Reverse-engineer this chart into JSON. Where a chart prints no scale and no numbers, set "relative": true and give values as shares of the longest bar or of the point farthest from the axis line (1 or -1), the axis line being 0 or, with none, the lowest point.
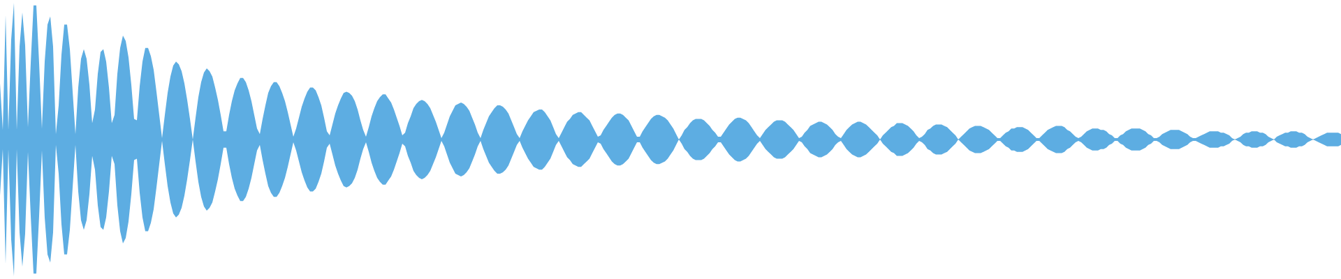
{
  "chart_data": {
    "type": "area",
    "relative": true,
    "categories": [
      null,
      null,
      null,
      null,
      null,
      null,
      null,
      null,
      null,
      null,
      null,
      null,
      null,
      null,
      null,
      null,
      null,
      null,
      null,
      null,
      null,
      null,
      null,
      null,
      null,
      null,
      null,
      null,
      null,
      null,
      null,
      null,
      null,
      null,
      null,
      null,
      null,
      null,
      null,
      null,
      null,
      null,
      null,
      null,
      null,
      null,
      null,
      null,
      null,
      null,
      null,
      null,
      null,
      null,
      null,
      null,
      null,
      null,
      null,
      null,
      null,
      null,
      null,
      null,
      null,
      null,
      null,
      null,
      null,
      null,
      null,
      null,
      null,
      null,
      null,
      null,
      null,
      null,
      null,
      null,
      null,
      null,
      null,
      null,
      null,
      null,
      null,
      null,
      null,
      null,
      null,
      null,
      null,
      null,
      null,
      null,
      null,
      null,
      null,
      null,
      null,
      null,
      null,
      null,
      null,
      null,
      null,
      null,
      null,
      null,
      null,
      null,
      null,
      null,
      null,
      null,
      null,
      null,
      null,
      null,
      null,
      null,
      null,
      null,
      null,
      null,
      null,
      null,
      null,
      null,
      null,
      null,
      null,
      null,
      null,
      null,
      null,
      null,
      null,
      null,
      null,
      null,
      null,
      null,
      null,
      null,
      null,
      null,
      null,
      null,
      null,
      null,
      null,
      null,
      null,
      null,
      null,
      null,
      null,
      null,
      null,
      null,
      null,
      null,
      null,
      null,
      null,
      null,
      null,
      null,
      null,
      null,
      null,
      null,
      null,
      null,
      null,
      null,
      null,
      null,
      null,
      null,
      null,
      null,
      null,
      null,
      null,
      null,
      null,
      null,
      null,
      null,
      null,
      null,
      null,
      null,
      null,
      null,
      null,
      null,
      null,
      null,
      null,
      null,
      null,
      null,
      null,
      null,
      null,
      null,
      null,
      null,
      null,
      null,
      null,
      null,
      null,
      null,
      null,
      null,
      null,
      null,
      null,
      null,
      null,
      null,
      null,
      null,
      null,
      null,
      null,
      null,
      null,
      null,
      null,
      null,
      null,
      null,
      null,
      null,
      null,
      null,
      null,
      null,
      null,
      null,
      null,
      null,
      null,
      null,
      null,
      null,
      null,
      null,
      null,
      null,
      null,
      null,
      null,
      null,
      null,
      null,
      null,
      null,
      null,
      null,
      null,
      null,
      null,
      null,
      null,
      null,
      null,
      null,
      null,
      null,
      null,
      null,
      null,
      null,
      null,
      null,
      null,
      null,
      null,
      null,
      null,
      null,
      null,
      null,
      null,
      null,
      null,
      null,
      null,
      null,
      null,
      null,
      null,
      null,
      null,
      null,
      null,
      null,
      null,
      null,
      null,
      null,
      null,
      null,
      null,
      null,
      null,
      null,
      null,
      null,
      null,
      null,
      null,
      null,
      null,
      null,
      null,
      null,
      null,
      null,
      null,
      null,
      null,
      null,
      null,
      null,
      null,
      null,
      null,
      null,
      null,
      null,
      null,
      null,
      null,
      null,
      null,
      null,
      null,
      null,
      null,
      null,
      null,
      null,
      null,
      null,
      null,
      null,
      null,
      null,
      null,
      null,
      null,
      null,
      null,
      null,
      null,
      null,
      null,
      null,
      null,
      null,
      null,
      null,
      null,
      null,
      null,
      null,
      null,
      null,
      null,
      null,
      null,
      null,
      null,
      null,
      null,
      null,
      null,
      null,
      null,
      null,
      null,
      null,
      null,
      null,
      null,
      null,
      null,
      null,
      null,
      null,
      null,
      null,
      null,
      null,
      null,
      null,
      null,
      null,
      null,
      null,
      null,
      null,
      null,
      null,
      null,
      null,
      null,
      null,
      null,
      null,
      null,
      null,
      null,
      null,
      null,
      null,
      null,
      null,
      null,
      null,
      null,
      null,
      null,
      null,
      null,
      null,
      null,
      null,
      null,
      null,
      null,
      null,
      null,
      null,
      null,
      null,
      null,
      null,
      null,
      null,
      null,
      null,
      null,
      null,
      null,
      null,
      null,
      null,
      null,
      null,
      null,
      null,
      null,
      null,
      null,
      null,
      null,
      null,
      null,
      null,
      null,
      null,
      null,
      null,
      null,
      null,
      null,
      null,
      null,
      null,
      null,
      null,
      null
    ],
    "series": [
      {
        "color": "#5dade2",
        "values": [
          0.41,
          0.07,
          0.91,
          0.07,
          0.73,
          1,
          0.07,
          0.68,
          0.93,
          0.69,
          0.09,
          0.56,
          0.98,
          0.98,
          0.56,
          0.08,
          0.57,
          0.84,
          0.9,
          0.68,
          0.04,
          0.25,
          0.62,
          0.84,
          0.84,
          0.66,
          0.35,
          0.04,
          0.38,
          0.59,
          0.66,
          0.59,
          0.4,
          0.12,
          0.22,
          0.48,
          0.64,
          0.66,
          0.57,
          0.38,
          0.12,
          0.18,
          0.48,
          0.67,
          0.76,
          0.72,
          0.6,
          0.4,
          0.15,
          0.14,
          0.39,
          0.57,
          0.67,
          0.67,
          0.61,
          0.51,
          0.35,
          0.18,
          0.01,
          0.18,
          0.34,
          0.46,
          0.54,
          0.57,
          0.55,
          0.5,
          0.41,
          0.29,
          0.15,
          0,
          0.16,
          0.31,
          0.42,
          0.49,
          0.52,
          0.5,
          0.46,
          0.38,
          0.29,
          0.18,
          0.06,
          0.06,
          0.18,
          0.28,
          0.36,
          0.41,
          0.45,
          0.45,
          0.42,
          0.36,
          0.28,
          0.18,
          0.08,
          0.04,
          0.15,
          0.25,
          0.34,
          0.39,
          0.42,
          0.42,
          0.39,
          0.34,
          0.28,
          0.2,
          0.11,
          0.02,
          0.08,
          0.16,
          0.24,
          0.3,
          0.35,
          0.38,
          0.38,
          0.36,
          0.31,
          0.25,
          0.16,
          0.06,
          0.03,
          0.11,
          0.19,
          0.25,
          0.3,
          0.34,
          0.35,
          0.34,
          0.32,
          0.28,
          0.22,
          0.14,
          0.07,
          0.02,
          0.09,
          0.17,
          0.23,
          0.28,
          0.31,
          0.33,
          0.33,
          0.3,
          0.27,
          0.22,
          0.16,
          0.1,
          0.03,
          0.05,
          0.12,
          0.17,
          0.23,
          0.26,
          0.28,
          0.29,
          0.28,
          0.26,
          0.23,
          0.18,
          0.13,
          0.07,
          0.01,
          0.05,
          0.11,
          0.17,
          0.21,
          0.25,
          0.26,
          0.27,
          0.26,
          0.24,
          0.21,
          0.16,
          0.11,
          0.05,
          0.01,
          0.07,
          0.12,
          0.17,
          0.2,
          0.23,
          0.25,
          0.25,
          0.24,
          0.22,
          0.19,
          0.14,
          0.09,
          0.04,
          0.01,
          0.06,
          0.1,
          0.14,
          0.17,
          0.2,
          0.21,
          0.22,
          0.22,
          0.2,
          0.17,
          0.14,
          0.09,
          0.04,
          0.01,
          0.05,
          0.09,
          0.13,
          0.15,
          0.18,
          0.19,
          0.2,
          0.2,
          0.18,
          0.16,
          0.14,
          0.1,
          0.06,
          0.02,
          0.03,
          0.07,
          0.1,
          0.13,
          0.16,
          0.18,
          0.19,
          0.19,
          0.18,
          0.16,
          0.14,
          0.1,
          0.06,
          0.02,
          0.02,
          0.06,
          0.09,
          0.12,
          0.15,
          0.17,
          0.18,
          0.18,
          0.17,
          0.16,
          0.14,
          0.11,
          0.08,
          0.04,
          0,
          0.03,
          0.07,
          0.09,
          0.12,
          0.14,
          0.15,
          0.15,
          0.15,
          0.14,
          0.12,
          0.1,
          0.07,
          0.05,
          0.02,
          0.02,
          0.05,
          0.08,
          0.11,
          0.13,
          0.15,
          0.16,
          0.16,
          0.15,
          0.14,
          0.12,
          0.09,
          0.06,
          0.03,
          0.01,
          0.04,
          0.07,
          0.09,
          0.11,
          0.13,
          0.14,
          0.14,
          0.14,
          0.13,
          0.11,
          0.09,
          0.07,
          0.04,
          0.01,
          0.02,
          0.05,
          0.07,
          0.1,
          0.11,
          0.12,
          0.13,
          0.13,
          0.12,
          0.11,
          0.09,
          0.07,
          0.04,
          0.02,
          0.01,
          0.04,
          0.07,
          0.09,
          0.11,
          0.12,
          0.13,
          0.13,
          0.12,
          0.11,
          0.09,
          0.07,
          0.05,
          0.03,
          0,
          0.03,
          0.05,
          0.07,
          0.09,
          0.1,
          0.12,
          0.12,
          0.12,
          0.11,
          0.1,
          0.08,
          0.06,
          0.03,
          0.01,
          0.02,
          0.04,
          0.07,
          0.08,
          0.1,
          0.11,
          0.11,
          0.11,
          0.1,
          0.09,
          0.07,
          0.05,
          0.03,
          0,
          0.02,
          0.04,
          0.06,
          0.08,
          0.09,
          0.1,
          0.1,
          0.1,
          0.09,
          0.08,
          0.07,
          0.05,
          0.03,
          0.01,
          0.01,
          0.03,
          0.05,
          0.06,
          0.08,
          0.08,
          0.09,
          0.09,
          0.09,
          0.08,
          0.07,
          0.05,
          0.03,
          0.01,
          0.01,
          0.03,
          0.05,
          0.07,
          0.08,
          0.09,
          0.1,
          0.1,
          0.1,
          0.09,
          0.07,
          0.06,
          0.04,
          0.02,
          0.01,
          0.02,
          0.04,
          0.06,
          0.07,
          0.08,
          0.08,
          0.08,
          0.07,
          0.07,
          0.06,
          0.04,
          0.03,
          0.01,
          0.01,
          0.03,
          0.04,
          0.06,
          0.07,
          0.08,
          0.08,
          0.08,
          0.08,
          0.07,
          0.06,
          0.04,
          0.03,
          0.01,
          0.01,
          0.02,
          0.04,
          0.05,
          0.06,
          0.07,
          0.07,
          0.07,
          0.07,
          0.06,
          0.05,
          0.04,
          0.02,
          0.01,
          0.01,
          0.02,
          0.03,
          0.04,
          0.05,
          0.06,
          0.06,
          0.06,
          0.06,
          0.05,
          0.05,
          0.04,
          0.03,
          0.01,
          0,
          0.01,
          0.02,
          0.04,
          0.05,
          0.05,
          0.06,
          0.06,
          0.06,
          0.05,
          0.05,
          0.04,
          0.02,
          0.01,
          0,
          0.02,
          0.03,
          0.04,
          0.05,
          0.05,
          0.06,
          0.06,
          0.06,
          0.05,
          0.05,
          0.04,
          0.02,
          0.01,
          0,
          0.01,
          0.02,
          0.03,
          0.04,
          0.05,
          0.05,
          0.05,
          0.05,
          0.05,
          0.04
        ]
      },
      {
        "color": "#5dade2",
        "values": [
          -0.41,
          -0.07,
          -0.91,
          -0.07,
          -0.73,
          -1,
          -0.07,
          -0.68,
          -0.93,
          -0.69,
          -0.09,
          -0.56,
          -0.98,
          -0.98,
          -0.56,
          -0.08,
          -0.57,
          -0.84,
          -0.9,
          -0.68,
          -0.04,
          -0.25,
          -0.62,
          -0.84,
          -0.84,
          -0.66,
          -0.35,
          -0.04,
          -0.38,
          -0.59,
          -0.66,
          -0.59,
          -0.4,
          -0.12,
          -0.22,
          -0.48,
          -0.64,
          -0.66,
          -0.57,
          -0.38,
          -0.12,
          -0.18,
          -0.48,
          -0.67,
          -0.76,
          -0.72,
          -0.6,
          -0.4,
          -0.15,
          -0.14,
          -0.39,
          -0.57,
          -0.67,
          -0.67,
          -0.61,
          -0.51,
          -0.35,
          -0.18,
          -0.01,
          -0.18,
          -0.34,
          -0.46,
          -0.54,
          -0.57,
          -0.55,
          -0.5,
          -0.41,
          -0.29,
          -0.15,
          0,
          -0.16,
          -0.31,
          -0.42,
          -0.49,
          -0.52,
          -0.5,
          -0.46,
          -0.38,
          -0.29,
          -0.18,
          -0.06,
          -0.06,
          -0.18,
          -0.28,
          -0.36,
          -0.41,
          -0.45,
          -0.45,
          -0.42,
          -0.36,
          -0.28,
          -0.18,
          -0.08,
          -0.04,
          -0.15,
          -0.25,
          -0.34,
          -0.39,
          -0.42,
          -0.42,
          -0.39,
          -0.34,
          -0.28,
          -0.2,
          -0.11,
          -0.02,
          -0.08,
          -0.16,
          -0.24,
          -0.3,
          -0.35,
          -0.38,
          -0.38,
          -0.36,
          -0.31,
          -0.25,
          -0.16,
          -0.06,
          -0.03,
          -0.11,
          -0.19,
          -0.25,
          -0.3,
          -0.34,
          -0.35,
          -0.34,
          -0.32,
          -0.28,
          -0.22,
          -0.14,
          -0.07,
          -0.02,
          -0.09,
          -0.17,
          -0.23,
          -0.28,
          -0.31,
          -0.33,
          -0.33,
          -0.3,
          -0.27,
          -0.22,
          -0.16,
          -0.1,
          -0.03,
          -0.05,
          -0.12,
          -0.17,
          -0.23,
          -0.26,
          -0.28,
          -0.29,
          -0.28,
          -0.26,
          -0.23,
          -0.18,
          -0.13,
          -0.07,
          -0.01,
          -0.05,
          -0.11,
          -0.17,
          -0.21,
          -0.25,
          -0.26,
          -0.27,
          -0.26,
          -0.24,
          -0.21,
          -0.16,
          -0.11,
          -0.05,
          -0.01,
          -0.07,
          -0.12,
          -0.17,
          -0.2,
          -0.23,
          -0.25,
          -0.25,
          -0.24,
          -0.22,
          -0.19,
          -0.14,
          -0.09,
          -0.04,
          -0.01,
          -0.06,
          -0.1,
          -0.14,
          -0.17,
          -0.2,
          -0.21,
          -0.22,
          -0.22,
          -0.2,
          -0.17,
          -0.14,
          -0.09,
          -0.04,
          -0.01,
          -0.05,
          -0.09,
          -0.13,
          -0.15,
          -0.18,
          -0.19,
          -0.2,
          -0.2,
          -0.18,
          -0.16,
          -0.14,
          -0.1,
          -0.06,
          -0.02,
          -0.03,
          -0.07,
          -0.1,
          -0.13,
          -0.16,
          -0.18,
          -0.19,
          -0.19,
          -0.18,
          -0.16,
          -0.14,
          -0.1,
          -0.06,
          -0.02,
          -0.02,
          -0.06,
          -0.09,
          -0.12,
          -0.15,
          -0.17,
          -0.18,
          -0.18,
          -0.17,
          -0.16,
          -0.14,
          -0.11,
          -0.08,
          -0.04,
          0,
          -0.03,
          -0.07,
          -0.09,
          -0.12,
          -0.14,
          -0.15,
          -0.15,
          -0.15,
          -0.14,
          -0.12,
          -0.1,
          -0.07,
          -0.05,
          -0.02,
          -0.02,
          -0.05,
          -0.08,
          -0.11,
          -0.13,
          -0.15,
          -0.16,
          -0.16,
          -0.15,
          -0.14,
          -0.12,
          -0.09,
          -0.06,
          -0.03,
          -0.01,
          -0.04,
          -0.07,
          -0.09,
          -0.11,
          -0.13,
          -0.14,
          -0.14,
          -0.14,
          -0.13,
          -0.11,
          -0.09,
          -0.07,
          -0.04,
          -0.01,
          -0.02,
          -0.05,
          -0.07,
          -0.1,
          -0.11,
          -0.12,
          -0.13,
          -0.13,
          -0.12,
          -0.11,
          -0.09,
          -0.07,
          -0.04,
          -0.02,
          -0.01,
          -0.04,
          -0.07,
          -0.09,
          -0.11,
          -0.12,
          -0.13,
          -0.13,
          -0.12,
          -0.11,
          -0.09,
          -0.07,
          -0.05,
          -0.03,
          0,
          -0.03,
          -0.05,
          -0.07,
          -0.09,
          -0.1,
          -0.12,
          -0.12,
          -0.12,
          -0.11,
          -0.1,
          -0.08,
          -0.06,
          -0.03,
          -0.01,
          -0.02,
          -0.04,
          -0.07,
          -0.08,
          -0.1,
          -0.11,
          -0.11,
          -0.11,
          -0.1,
          -0.09,
          -0.07,
          -0.05,
          -0.03,
          0,
          -0.02,
          -0.04,
          -0.06,
          -0.08,
          -0.09,
          -0.1,
          -0.1,
          -0.1,
          -0.09,
          -0.08,
          -0.07,
          -0.05,
          -0.03,
          -0.01,
          -0.01,
          -0.03,
          -0.05,
          -0.06,
          -0.08,
          -0.08,
          -0.09,
          -0.09,
          -0.09,
          -0.08,
          -0.07,
          -0.05,
          -0.03,
          -0.01,
          -0.01,
          -0.03,
          -0.05,
          -0.07,
          -0.08,
          -0.09,
          -0.1,
          -0.1,
          -0.1,
          -0.09,
          -0.07,
          -0.06,
          -0.04,
          -0.02,
          -0.01,
          -0.02,
          -0.04,
          -0.06,
          -0.07,
          -0.08,
          -0.08,
          -0.08,
          -0.07,
          -0.07,
          -0.06,
          -0.04,
          -0.03,
          -0.01,
          -0.01,
          -0.03,
          -0.04,
          -0.06,
          -0.07,
          -0.08,
          -0.08,
          -0.08,
          -0.08,
          -0.07,
          -0.06,
          -0.04,
          -0.03,
          -0.01,
          -0.01,
          -0.02,
          -0.04,
          -0.05,
          -0.06,
          -0.07,
          -0.07,
          -0.07,
          -0.07,
          -0.06,
          -0.05,
          -0.04,
          -0.02,
          -0.01,
          -0.01,
          -0.02,
          -0.03,
          -0.04,
          -0.05,
          -0.06,
          -0.06,
          -0.06,
          -0.06,
          -0.05,
          -0.05,
          -0.04,
          -0.03,
          -0.01,
          0,
          -0.01,
          -0.02,
          -0.04,
          -0.05,
          -0.05,
          -0.06,
          -0.06,
          -0.06,
          -0.05,
          -0.05,
          -0.04,
          -0.02,
          -0.01,
          0,
          -0.02,
          -0.03,
          -0.04,
          -0.05,
          -0.05,
          -0.06,
          -0.06,
          -0.06,
          -0.05,
          -0.05,
          -0.04,
          -0.02,
          -0.01,
          0,
          -0.01,
          -0.02,
          -0.03,
          -0.04,
          -0.05,
          -0.05,
          -0.05,
          -0.05,
          -0.05,
          -0.04
        ]
      }
    ]
  }
}
